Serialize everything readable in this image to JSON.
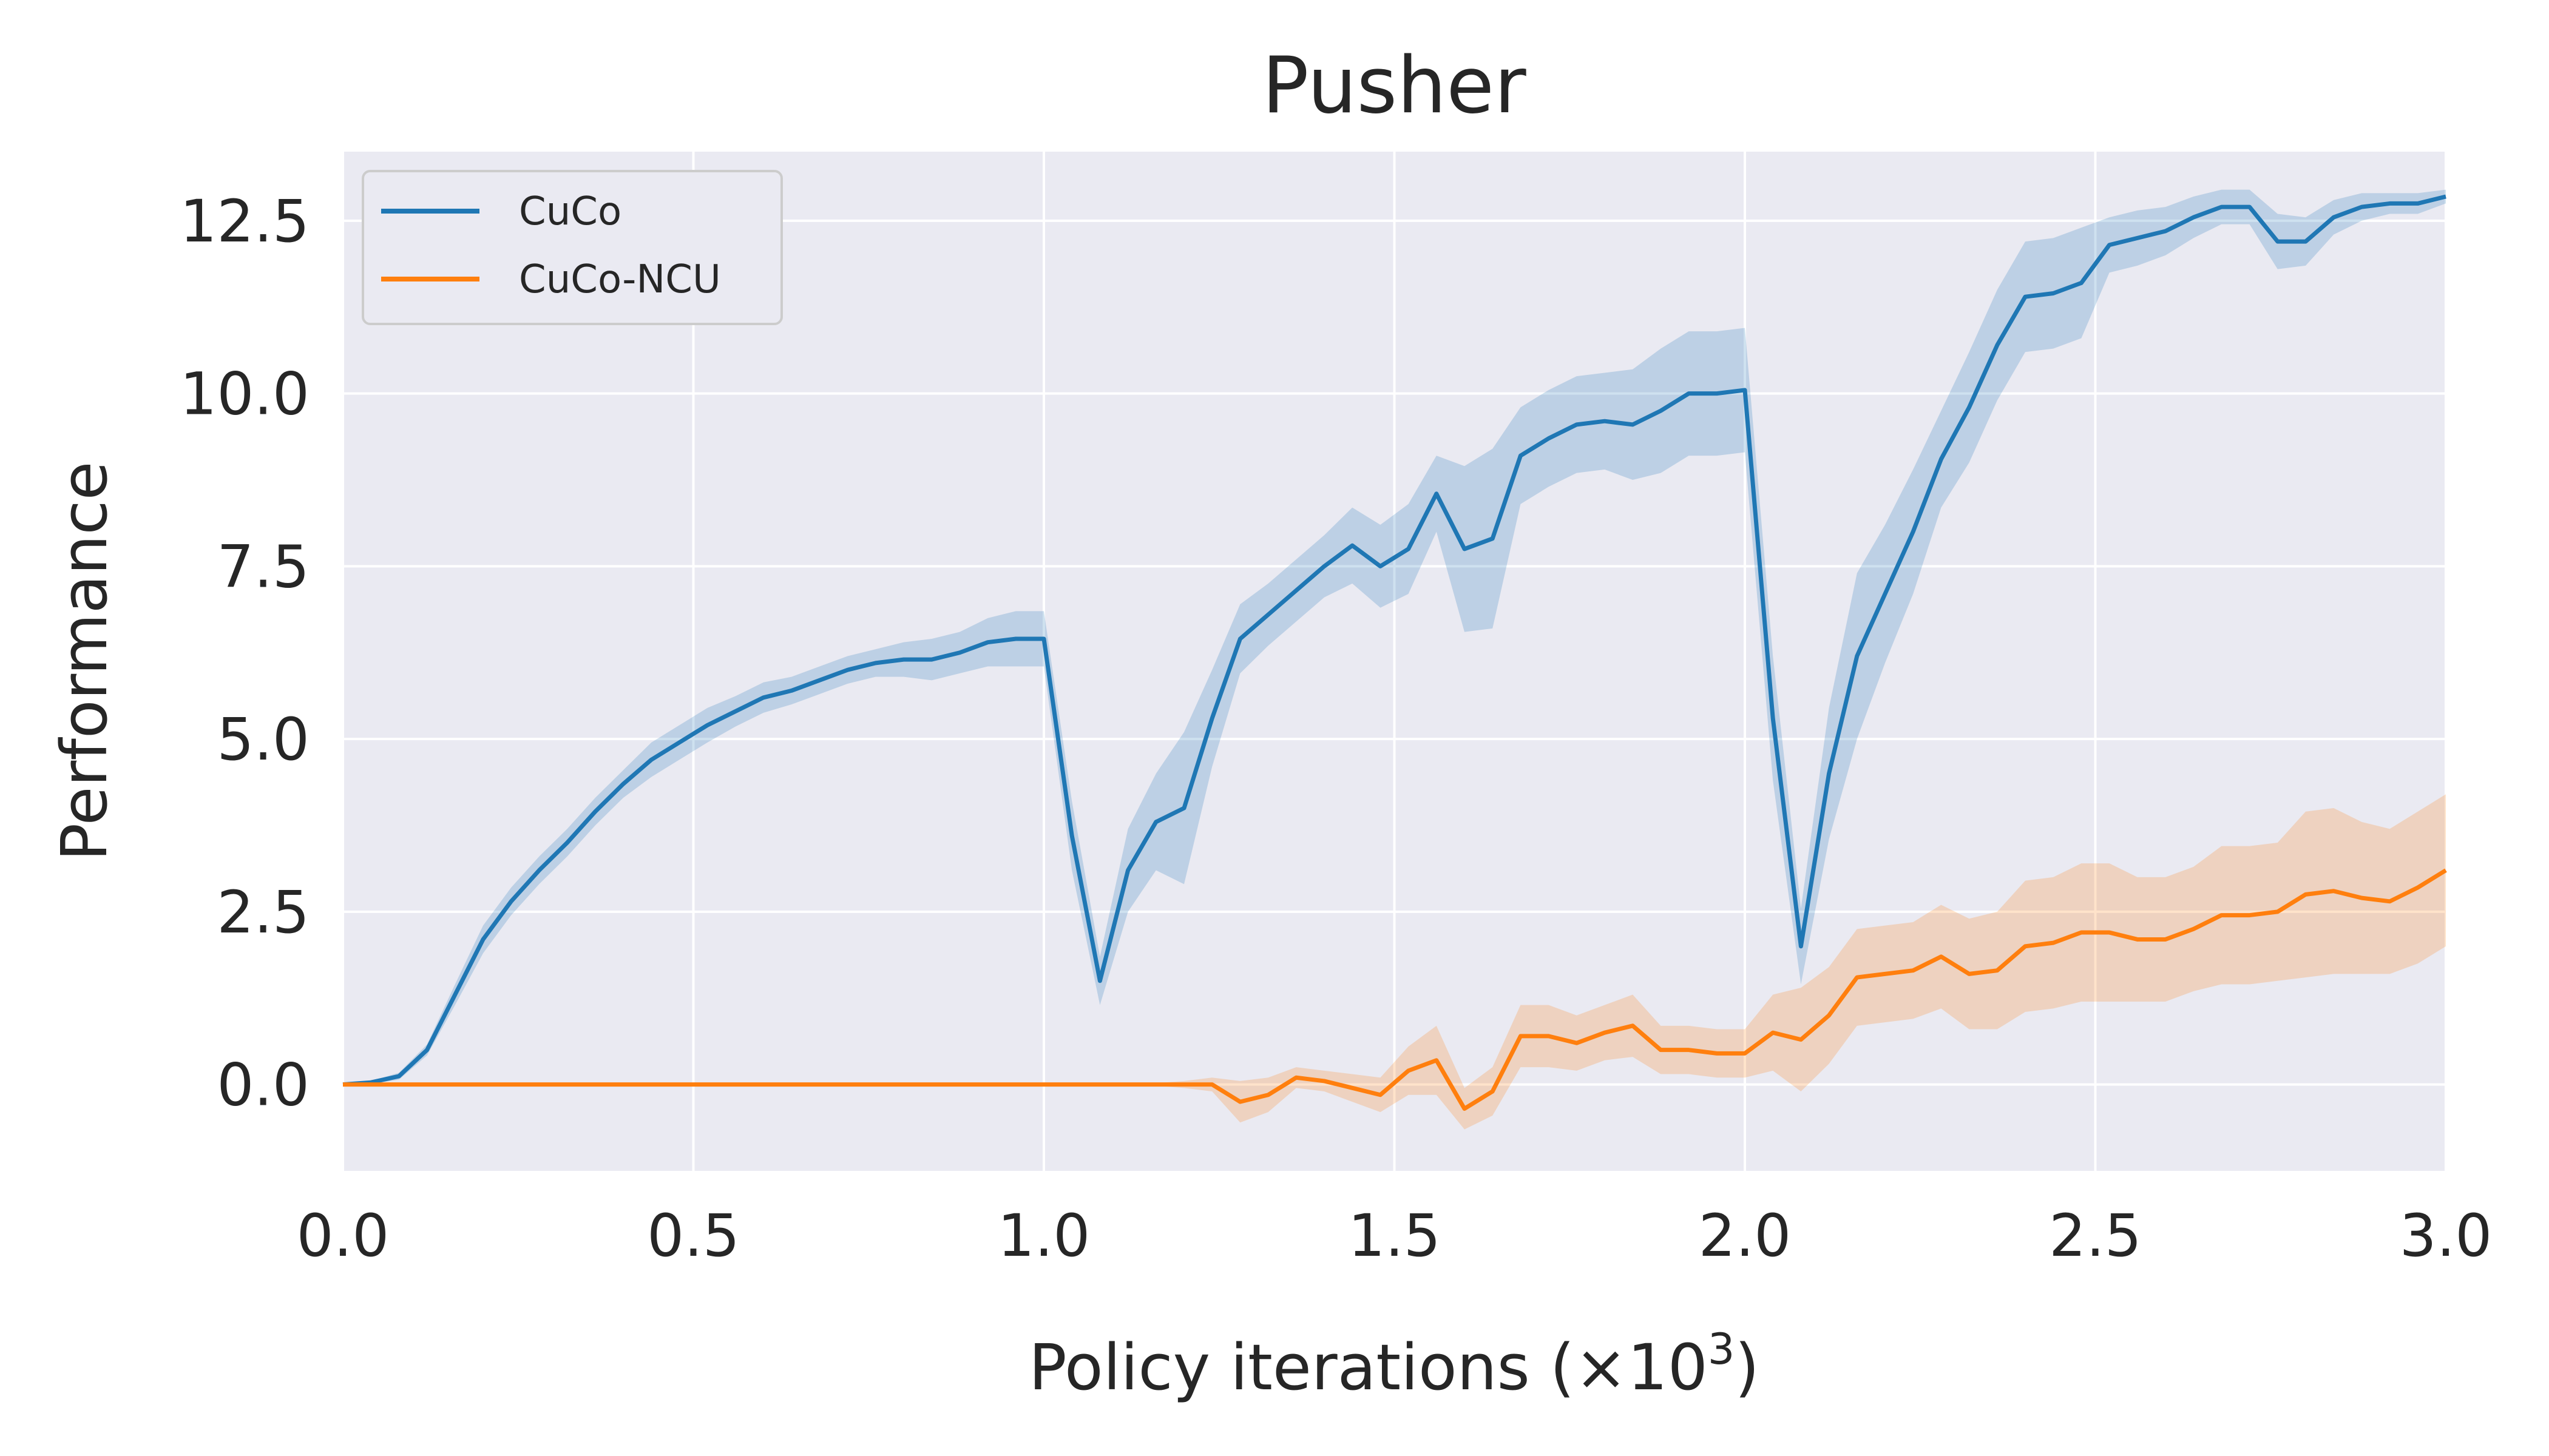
{
  "chart_data": {
    "type": "line",
    "title": "Pusher",
    "xlabel_main": "Policy iterations (×10",
    "xlabel_exp": "3",
    "xlabel_close": ")",
    "ylabel": "Performance",
    "xlim": [
      0,
      3.0
    ],
    "ylim": [
      -1.25,
      13.5
    ],
    "x_ticks": [
      "0.0",
      "0.5",
      "1.0",
      "1.5",
      "2.0",
      "2.5",
      "3.0"
    ],
    "y_ticks": [
      "0.0",
      "2.5",
      "5.0",
      "7.5",
      "10.0",
      "12.5"
    ],
    "grid": true,
    "legend_position": "top-left",
    "colors": {
      "background": "#eaeaf2",
      "grid": "#ffffff",
      "cuco": "#1f77b4",
      "ncu": "#ff7f0e"
    },
    "series": [
      {
        "name": "CuCo",
        "points": [
          [
            0.0,
            0.0
          ],
          [
            0.04,
            0.03
          ],
          [
            0.08,
            0.12
          ],
          [
            0.12,
            0.5
          ],
          [
            0.16,
            1.3
          ],
          [
            0.2,
            2.1
          ],
          [
            0.24,
            2.65
          ],
          [
            0.28,
            3.1
          ],
          [
            0.32,
            3.5
          ],
          [
            0.36,
            3.95
          ],
          [
            0.4,
            4.35
          ],
          [
            0.44,
            4.7
          ],
          [
            0.48,
            4.95
          ],
          [
            0.52,
            5.2
          ],
          [
            0.56,
            5.4
          ],
          [
            0.6,
            5.6
          ],
          [
            0.64,
            5.7
          ],
          [
            0.68,
            5.85
          ],
          [
            0.72,
            6.0
          ],
          [
            0.76,
            6.1
          ],
          [
            0.8,
            6.15
          ],
          [
            0.84,
            6.15
          ],
          [
            0.88,
            6.25
          ],
          [
            0.92,
            6.4
          ],
          [
            0.96,
            6.45
          ],
          [
            1.0,
            6.45
          ],
          [
            1.04,
            3.6
          ],
          [
            1.08,
            1.5
          ],
          [
            1.12,
            3.1
          ],
          [
            1.16,
            3.8
          ],
          [
            1.2,
            4.0
          ],
          [
            1.24,
            5.3
          ],
          [
            1.28,
            6.45
          ],
          [
            1.32,
            6.8
          ],
          [
            1.36,
            7.15
          ],
          [
            1.4,
            7.5
          ],
          [
            1.44,
            7.8
          ],
          [
            1.48,
            7.5
          ],
          [
            1.52,
            7.75
          ],
          [
            1.56,
            8.55
          ],
          [
            1.6,
            7.75
          ],
          [
            1.64,
            7.9
          ],
          [
            1.68,
            9.1
          ],
          [
            1.72,
            9.35
          ],
          [
            1.76,
            9.55
          ],
          [
            1.8,
            9.6
          ],
          [
            1.84,
            9.55
          ],
          [
            1.88,
            9.75
          ],
          [
            1.92,
            10.0
          ],
          [
            1.96,
            10.0
          ],
          [
            2.0,
            10.05
          ],
          [
            2.04,
            5.3
          ],
          [
            2.08,
            2.0
          ],
          [
            2.12,
            4.5
          ],
          [
            2.16,
            6.2
          ],
          [
            2.2,
            7.1
          ],
          [
            2.24,
            8.0
          ],
          [
            2.28,
            9.05
          ],
          [
            2.32,
            9.8
          ],
          [
            2.36,
            10.7
          ],
          [
            2.4,
            11.4
          ],
          [
            2.44,
            11.45
          ],
          [
            2.48,
            11.6
          ],
          [
            2.52,
            12.15
          ],
          [
            2.56,
            12.25
          ],
          [
            2.6,
            12.35
          ],
          [
            2.64,
            12.55
          ],
          [
            2.68,
            12.7
          ],
          [
            2.72,
            12.7
          ],
          [
            2.76,
            12.2
          ],
          [
            2.8,
            12.2
          ],
          [
            2.84,
            12.55
          ],
          [
            2.88,
            12.7
          ],
          [
            2.92,
            12.75
          ],
          [
            2.96,
            12.75
          ],
          [
            3.0,
            12.85
          ]
        ],
        "band_halfwidth": [
          0.02,
          0.02,
          0.05,
          0.08,
          0.15,
          0.2,
          0.2,
          0.2,
          0.2,
          0.2,
          0.2,
          0.25,
          0.25,
          0.25,
          0.22,
          0.22,
          0.2,
          0.2,
          0.2,
          0.2,
          0.25,
          0.3,
          0.3,
          0.35,
          0.4,
          0.4,
          0.5,
          0.35,
          0.6,
          0.7,
          1.1,
          0.7,
          0.5,
          0.45,
          0.45,
          0.45,
          0.55,
          0.6,
          0.65,
          0.55,
          1.2,
          1.3,
          0.7,
          0.7,
          0.7,
          0.7,
          0.8,
          0.9,
          0.9,
          0.9,
          0.9,
          0.9,
          0.55,
          0.95,
          1.2,
          1.0,
          0.9,
          0.7,
          0.8,
          0.8,
          0.8,
          0.8,
          0.8,
          0.4,
          0.4,
          0.35,
          0.3,
          0.25,
          0.25,
          0.4,
          0.35,
          0.25,
          0.2,
          0.15,
          0.15,
          0.1
        ]
      },
      {
        "name": "CuCo-NCU",
        "points": [
          [
            0.0,
            0.0
          ],
          [
            0.04,
            0.0
          ],
          [
            0.08,
            0.0
          ],
          [
            0.12,
            0.0
          ],
          [
            0.16,
            0.0
          ],
          [
            0.2,
            0.0
          ],
          [
            0.24,
            0.0
          ],
          [
            0.28,
            0.0
          ],
          [
            0.32,
            0.0
          ],
          [
            0.36,
            0.0
          ],
          [
            0.4,
            0.0
          ],
          [
            0.44,
            0.0
          ],
          [
            0.48,
            0.0
          ],
          [
            0.52,
            0.0
          ],
          [
            0.56,
            0.0
          ],
          [
            0.6,
            0.0
          ],
          [
            0.64,
            0.0
          ],
          [
            0.68,
            0.0
          ],
          [
            0.72,
            0.0
          ],
          [
            0.76,
            0.0
          ],
          [
            0.8,
            0.0
          ],
          [
            0.84,
            0.0
          ],
          [
            0.88,
            0.0
          ],
          [
            0.92,
            0.0
          ],
          [
            0.96,
            0.0
          ],
          [
            1.0,
            0.0
          ],
          [
            1.04,
            0.0
          ],
          [
            1.08,
            0.0
          ],
          [
            1.12,
            0.0
          ],
          [
            1.16,
            0.0
          ],
          [
            1.2,
            0.0
          ],
          [
            1.24,
            0.0
          ],
          [
            1.28,
            -0.25
          ],
          [
            1.32,
            -0.15
          ],
          [
            1.36,
            0.1
          ],
          [
            1.4,
            0.05
          ],
          [
            1.44,
            -0.05
          ],
          [
            1.48,
            -0.15
          ],
          [
            1.52,
            0.2
          ],
          [
            1.56,
            0.35
          ],
          [
            1.6,
            -0.35
          ],
          [
            1.64,
            -0.1
          ],
          [
            1.68,
            0.7
          ],
          [
            1.72,
            0.7
          ],
          [
            1.76,
            0.6
          ],
          [
            1.8,
            0.75
          ],
          [
            1.84,
            0.85
          ],
          [
            1.88,
            0.5
          ],
          [
            1.92,
            0.5
          ],
          [
            1.96,
            0.45
          ],
          [
            2.0,
            0.45
          ],
          [
            2.04,
            0.75
          ],
          [
            2.08,
            0.65
          ],
          [
            2.12,
            1.0
          ],
          [
            2.16,
            1.55
          ],
          [
            2.2,
            1.6
          ],
          [
            2.24,
            1.65
          ],
          [
            2.28,
            1.85
          ],
          [
            2.32,
            1.6
          ],
          [
            2.36,
            1.65
          ],
          [
            2.4,
            2.0
          ],
          [
            2.44,
            2.05
          ],
          [
            2.48,
            2.2
          ],
          [
            2.52,
            2.2
          ],
          [
            2.56,
            2.1
          ],
          [
            2.6,
            2.1
          ],
          [
            2.64,
            2.25
          ],
          [
            2.68,
            2.45
          ],
          [
            2.72,
            2.45
          ],
          [
            2.76,
            2.5
          ],
          [
            2.8,
            2.75
          ],
          [
            2.84,
            2.8
          ],
          [
            2.88,
            2.7
          ],
          [
            2.92,
            2.65
          ],
          [
            2.96,
            2.85
          ],
          [
            3.0,
            3.1
          ]
        ],
        "band_halfwidth": [
          0.0,
          0.0,
          0.0,
          0.0,
          0.0,
          0.0,
          0.0,
          0.0,
          0.0,
          0.0,
          0.0,
          0.0,
          0.0,
          0.0,
          0.0,
          0.0,
          0.0,
          0.0,
          0.0,
          0.0,
          0.0,
          0.0,
          0.0,
          0.0,
          0.0,
          0.0,
          0.0,
          0.0,
          0.0,
          0.02,
          0.05,
          0.1,
          0.3,
          0.25,
          0.15,
          0.15,
          0.2,
          0.25,
          0.35,
          0.5,
          0.3,
          0.35,
          0.45,
          0.45,
          0.4,
          0.4,
          0.45,
          0.35,
          0.35,
          0.35,
          0.35,
          0.55,
          0.75,
          0.7,
          0.7,
          0.7,
          0.7,
          0.75,
          0.8,
          0.85,
          0.95,
          0.95,
          1.0,
          1.0,
          0.9,
          0.9,
          0.9,
          1.0,
          1.0,
          1.0,
          1.2,
          1.2,
          1.1,
          1.05,
          1.1,
          1.1
        ]
      }
    ]
  }
}
